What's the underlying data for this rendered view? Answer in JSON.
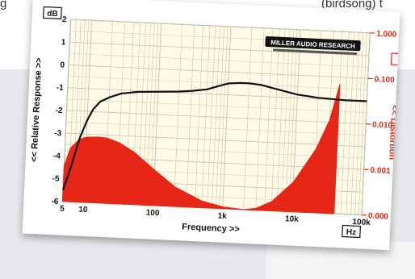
{
  "page": {
    "fragment_left": "g",
    "fragment_right": "(birdsong) t"
  },
  "chart_data": {
    "type": "area",
    "xlabel": "Frequency >>",
    "ylabel": "<< Relative Response >>",
    "ylabel_right": "<< Distortion",
    "x_unit": "Hz",
    "y_unit": "dB",
    "x_scale": "log",
    "xlim": [
      5,
      100000
    ],
    "ylim": [
      -6,
      2
    ],
    "y2_scale": "log",
    "y2lim": [
      0.0001,
      1.0
    ],
    "x_ticks": [
      {
        "value": 5,
        "label": "5"
      },
      {
        "value": 10,
        "label": "10"
      },
      {
        "value": 100,
        "label": "100"
      },
      {
        "value": 1000,
        "label": "1k"
      },
      {
        "value": 10000,
        "label": "10k"
      },
      {
        "value": 100000,
        "label": "100k"
      }
    ],
    "y_ticks": [
      2,
      1,
      0,
      -1,
      -2,
      -3,
      -4,
      -5,
      -6
    ],
    "y2_ticks": [
      {
        "value": 1.0,
        "label": "1.000"
      },
      {
        "value": 0.1,
        "label": "0.100"
      },
      {
        "value": 0.01,
        "label": "0.010"
      },
      {
        "value": 0.001,
        "label": "0.001"
      },
      {
        "value": 0.0001,
        "label": "0.000"
      }
    ],
    "grid": true,
    "logo": "MILLER AUDIO RESEARCH",
    "colors": {
      "response": "#111111",
      "distortion": "#e62617",
      "plot_background": "#fffbe6",
      "grid": "#c8c6b4"
    },
    "series": [
      {
        "kind": "line",
        "axis": "left",
        "x": [
          5,
          6,
          7,
          8,
          10,
          12,
          15,
          20,
          30,
          50,
          100,
          200,
          300,
          500,
          700,
          1000,
          1500,
          2000,
          3000,
          5000,
          10000,
          20000,
          50000,
          100000
        ],
        "y": [
          -5.5,
          -4.7,
          -3.9,
          -3.2,
          -2.4,
          -1.9,
          -1.55,
          -1.35,
          -1.15,
          -1.05,
          -1.0,
          -0.95,
          -0.9,
          -0.8,
          -0.65,
          -0.5,
          -0.45,
          -0.45,
          -0.5,
          -0.65,
          -0.85,
          -0.95,
          -1.0,
          -1.0
        ]
      },
      {
        "kind": "area",
        "axis": "right",
        "x": [
          5,
          6,
          8,
          10,
          15,
          20,
          30,
          50,
          100,
          200,
          500,
          1000,
          2000,
          3000,
          5000,
          10000,
          20000,
          30000,
          40000
        ],
        "y": [
          0.0006,
          0.0015,
          0.0024,
          0.0027,
          0.0028,
          0.0027,
          0.0022,
          0.0014,
          0.0006,
          0.00027,
          0.00014,
          0.00011,
          0.0001,
          0.00011,
          0.00016,
          0.00045,
          0.0025,
          0.011,
          0.07
        ]
      }
    ]
  }
}
